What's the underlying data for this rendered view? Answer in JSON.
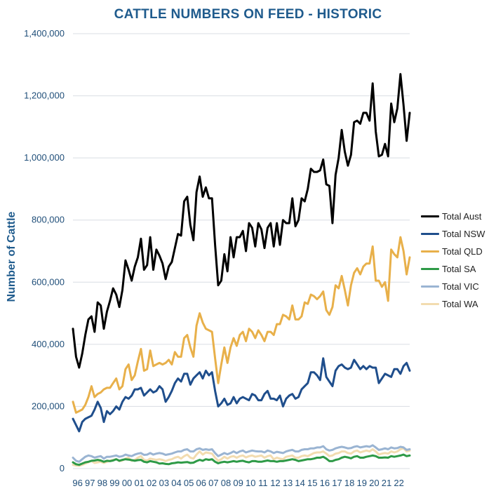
{
  "chart_data": {
    "type": "line",
    "title": "CATTLE NUMBERS ON FEED - HISTORIC",
    "xlabel": "",
    "ylabel": "Number of Cattle",
    "ylim": [
      0,
      1400000
    ],
    "yticks": [
      0,
      200000,
      400000,
      600000,
      800000,
      1000000,
      1200000,
      1400000
    ],
    "ytick_labels": [
      "0",
      "200,000",
      "400,000",
      "600,000",
      "800,000",
      "1,000,000",
      "1,200,000",
      "1,400,000"
    ],
    "x_tick_labels": [
      "96",
      "97",
      "98",
      "99",
      "00",
      "01",
      "02",
      "03",
      "04",
      "05",
      "06",
      "07",
      "08",
      "09",
      "10",
      "11",
      "12",
      "13",
      "14",
      "15",
      "16",
      "17",
      "18",
      "19",
      "20",
      "21",
      "22"
    ],
    "x_start": 1996.0,
    "x_step": 0.25,
    "grid": "horizontal",
    "legend_position": "right",
    "series": [
      {
        "name": "Total Aust",
        "color": "#000000",
        "values": [
          450000,
          360000,
          325000,
          370000,
          430000,
          480000,
          490000,
          440000,
          535000,
          525000,
          450000,
          505000,
          540000,
          580000,
          560000,
          520000,
          575000,
          670000,
          640000,
          605000,
          650000,
          680000,
          740000,
          640000,
          655000,
          745000,
          640000,
          705000,
          685000,
          660000,
          610000,
          650000,
          665000,
          710000,
          755000,
          750000,
          860000,
          875000,
          785000,
          735000,
          890000,
          940000,
          875000,
          905000,
          870000,
          870000,
          720000,
          590000,
          605000,
          690000,
          635000,
          745000,
          680000,
          745000,
          745000,
          765000,
          700000,
          790000,
          775000,
          715000,
          790000,
          770000,
          710000,
          775000,
          790000,
          715000,
          790000,
          720000,
          800000,
          790000,
          790000,
          870000,
          780000,
          800000,
          870000,
          860000,
          900000,
          965000,
          955000,
          955000,
          960000,
          995000,
          915000,
          910000,
          790000,
          945000,
          1000000,
          1090000,
          1020000,
          975000,
          1010000,
          1115000,
          1120000,
          1110000,
          1145000,
          1145000,
          1120000,
          1240000,
          1085000,
          1005000,
          1010000,
          1045000,
          1005000,
          1175000,
          1115000,
          1160000,
          1270000,
          1170000,
          1055000,
          1145000
        ]
      },
      {
        "name": "Total NSW",
        "color": "#1f4e8c",
        "values": [
          160000,
          140000,
          120000,
          150000,
          160000,
          165000,
          170000,
          190000,
          215000,
          195000,
          150000,
          185000,
          175000,
          185000,
          200000,
          190000,
          215000,
          230000,
          225000,
          235000,
          255000,
          255000,
          260000,
          235000,
          245000,
          255000,
          245000,
          250000,
          265000,
          255000,
          215000,
          230000,
          250000,
          275000,
          290000,
          280000,
          305000,
          305000,
          270000,
          290000,
          300000,
          310000,
          290000,
          315000,
          300000,
          310000,
          250000,
          200000,
          210000,
          225000,
          205000,
          210000,
          230000,
          210000,
          225000,
          230000,
          225000,
          220000,
          240000,
          235000,
          220000,
          220000,
          240000,
          250000,
          225000,
          225000,
          220000,
          235000,
          200000,
          225000,
          235000,
          240000,
          225000,
          230000,
          255000,
          265000,
          275000,
          310000,
          310000,
          300000,
          285000,
          355000,
          295000,
          280000,
          265000,
          315000,
          330000,
          335000,
          325000,
          320000,
          325000,
          350000,
          335000,
          320000,
          330000,
          320000,
          330000,
          325000,
          325000,
          275000,
          290000,
          305000,
          300000,
          295000,
          320000,
          320000,
          305000,
          330000,
          340000,
          315000
        ]
      },
      {
        "name": "Total QLD",
        "color": "#e8b04a",
        "values": [
          215000,
          180000,
          185000,
          190000,
          205000,
          230000,
          265000,
          230000,
          240000,
          245000,
          255000,
          260000,
          260000,
          275000,
          290000,
          255000,
          265000,
          320000,
          335000,
          285000,
          300000,
          345000,
          385000,
          315000,
          320000,
          380000,
          330000,
          335000,
          340000,
          335000,
          340000,
          350000,
          335000,
          375000,
          360000,
          360000,
          420000,
          430000,
          390000,
          360000,
          460000,
          500000,
          470000,
          450000,
          445000,
          440000,
          355000,
          275000,
          335000,
          390000,
          340000,
          390000,
          420000,
          395000,
          430000,
          440000,
          410000,
          450000,
          440000,
          420000,
          445000,
          430000,
          410000,
          440000,
          440000,
          430000,
          465000,
          465000,
          495000,
          490000,
          480000,
          525000,
          480000,
          480000,
          490000,
          535000,
          530000,
          560000,
          555000,
          545000,
          555000,
          570000,
          510000,
          495000,
          520000,
          590000,
          580000,
          620000,
          575000,
          525000,
          590000,
          630000,
          645000,
          625000,
          650000,
          660000,
          660000,
          715000,
          605000,
          605000,
          585000,
          600000,
          540000,
          705000,
          690000,
          680000,
          745000,
          700000,
          625000,
          680000
        ]
      },
      {
        "name": "Total SA",
        "color": "#2e9a47",
        "values": [
          20000,
          14000,
          12000,
          16000,
          20000,
          22000,
          25000,
          26000,
          28000,
          26000,
          22000,
          25000,
          24000,
          26000,
          30000,
          25000,
          28000,
          30000,
          29000,
          27000,
          25000,
          27000,
          28000,
          22000,
          20000,
          24000,
          22000,
          20000,
          16000,
          17000,
          15000,
          14000,
          17000,
          18000,
          20000,
          19000,
          20000,
          21000,
          18000,
          19000,
          24000,
          28000,
          25000,
          30000,
          28000,
          30000,
          22000,
          17000,
          20000,
          22000,
          20000,
          22000,
          24000,
          22000,
          24000,
          25000,
          22000,
          20000,
          24000,
          24000,
          22000,
          22000,
          24000,
          26000,
          24000,
          24000,
          22000,
          24000,
          24000,
          26000,
          28000,
          30000,
          28000,
          24000,
          26000,
          28000,
          30000,
          30000,
          32000,
          35000,
          35000,
          38000,
          32000,
          24000,
          24000,
          28000,
          30000,
          35000,
          38000,
          36000,
          33000,
          38000,
          40000,
          35000,
          35000,
          38000,
          40000,
          42000,
          40000,
          35000,
          35000,
          36000,
          35000,
          40000,
          38000,
          40000,
          42000,
          45000,
          40000,
          42000
        ]
      },
      {
        "name": "Total VIC",
        "color": "#9ab4d2",
        "values": [
          35000,
          25000,
          22000,
          30000,
          38000,
          42000,
          40000,
          35000,
          38000,
          40000,
          32000,
          38000,
          38000,
          40000,
          42000,
          38000,
          40000,
          45000,
          42000,
          40000,
          45000,
          48000,
          50000,
          44000,
          45000,
          50000,
          45000,
          48000,
          50000,
          48000,
          44000,
          46000,
          48000,
          52000,
          55000,
          55000,
          60000,
          62000,
          55000,
          55000,
          62000,
          65000,
          60000,
          62000,
          60000,
          62000,
          50000,
          40000,
          45000,
          50000,
          46000,
          50000,
          55000,
          50000,
          55000,
          58000,
          52000,
          55000,
          58000,
          56000,
          55000,
          55000,
          52000,
          58000,
          55000,
          50000,
          54000,
          52000,
          50000,
          55000,
          58000,
          60000,
          55000,
          55000,
          60000,
          62000,
          62000,
          65000,
          65000,
          68000,
          68000,
          72000,
          62000,
          58000,
          60000,
          65000,
          68000,
          70000,
          68000,
          65000,
          66000,
          70000,
          72000,
          68000,
          70000,
          72000,
          70000,
          75000,
          68000,
          60000,
          62000,
          65000,
          62000,
          68000,
          65000,
          66000,
          70000,
          68000,
          60000,
          62000
        ]
      },
      {
        "name": "Total WA",
        "color": "#f2dcb0",
        "values": [
          12000,
          10000,
          9000,
          12000,
          16000,
          20000,
          25000,
          18000,
          20000,
          22000,
          18000,
          22000,
          25000,
          28000,
          30000,
          24000,
          26000,
          32000,
          35000,
          25000,
          28000,
          35000,
          40000,
          28000,
          26000,
          32000,
          30000,
          28000,
          30000,
          28000,
          24000,
          28000,
          30000,
          35000,
          38000,
          32000,
          40000,
          45000,
          35000,
          32000,
          45000,
          55000,
          45000,
          52000,
          50000,
          48000,
          35000,
          25000,
          30000,
          38000,
          32000,
          38000,
          40000,
          35000,
          40000,
          42000,
          36000,
          40000,
          42000,
          38000,
          40000,
          42000,
          35000,
          40000,
          42000,
          30000,
          35000,
          32000,
          30000,
          38000,
          40000,
          42000,
          35000,
          35000,
          40000,
          42000,
          40000,
          45000,
          50000,
          52000,
          52000,
          55000,
          48000,
          40000,
          42000,
          48000,
          50000,
          55000,
          55000,
          50000,
          48000,
          55000,
          58000,
          52000,
          55000,
          58000,
          55000,
          62000,
          55000,
          45000,
          48000,
          50000,
          48000,
          55000,
          52000,
          55000,
          62000,
          65000,
          55000,
          58000
        ]
      }
    ]
  }
}
